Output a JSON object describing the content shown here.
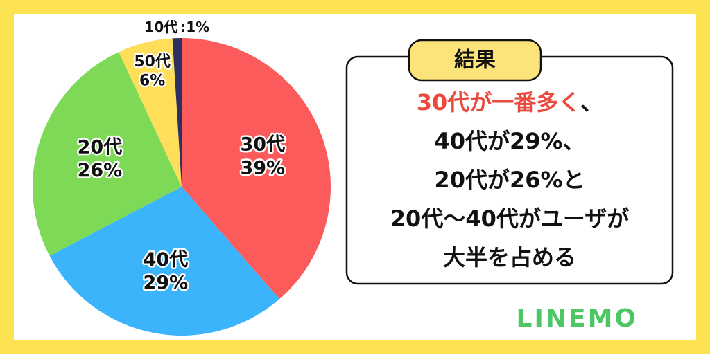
{
  "chart_data": {
    "type": "pie",
    "categories": [
      "30代",
      "40代",
      "20代",
      "50代",
      "10代"
    ],
    "values": [
      39,
      29,
      26,
      6,
      1
    ],
    "value_labels": [
      "39%",
      "29%",
      "26%",
      "6%",
      ":1%"
    ],
    "colors": [
      "#fc5b5b",
      "#3bb4fc",
      "#7ed957",
      "#ffde59",
      "#2e2f5e"
    ]
  },
  "result": {
    "title": "結果",
    "highlight": "30代が一番多く",
    "lines": [
      "、",
      "40代が29%、",
      "20代が26%と",
      "20代〜40代がユーザが",
      "大半を占める"
    ]
  },
  "logo": "LINEMO"
}
